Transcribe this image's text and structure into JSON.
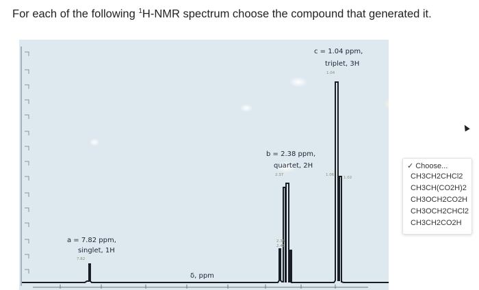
{
  "question": {
    "before": "For each of the following ",
    "sup": "1",
    "after": "H-NMR spectrum choose the compound that generated it."
  },
  "spectrum": {
    "peak_a": {
      "line1": "a = 7.82 ppm,",
      "line2": "singlet, 1H",
      "tick": "7.82"
    },
    "peak_b": {
      "line1": "b = 2.38 ppm,",
      "line2": "quartet, 2H",
      "tick1": "2.37",
      "tick2": "2.35",
      "tick3": "2.41"
    },
    "peak_c": {
      "line1": "c = 1.04 ppm,",
      "line2": "triplet, 3H",
      "tick": "1.04",
      "tick_left": "1.06",
      "tick_right": "1.02"
    },
    "xaxis_label": "δ, ppm"
  },
  "dropdown": {
    "selected": "Choose...",
    "options": [
      "CH3CH2CHCl2",
      "CH3CH(CO2H)2",
      "CH3OCH2CO2H",
      "CH3OCH2CHCl2",
      "CH3CH2CO2H"
    ]
  },
  "colors": {
    "photo_background": "#dde8ef",
    "trace": "#1a1d24",
    "text": "#222222"
  }
}
